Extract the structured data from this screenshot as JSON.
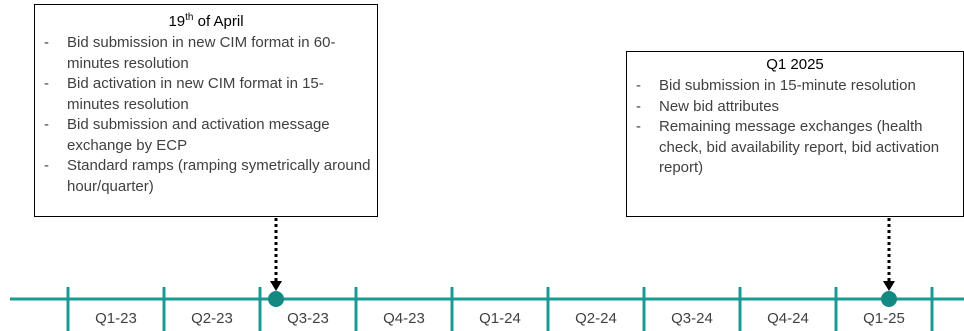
{
  "milestones": [
    {
      "title_main": "19",
      "title_sup": "th",
      "title_rest": " of April",
      "items": [
        "Bid submission in new CIM format in 60-minutes resolution",
        "Bid activation in new CIM format in 15-minutes resolution",
        "Bid submission and activation message exchange by ECP",
        "Standard ramps (ramping symetrically around hour/quarter)"
      ]
    },
    {
      "title": "Q1 2025",
      "items": [
        "Bid submission in 15-minute resolution",
        "New bid attributes",
        "Remaining message exchanges (health check, bid availability report, bid activation report)"
      ]
    }
  ],
  "quarters": [
    "Q1-23",
    "Q2-23",
    "Q3-23",
    "Q4-23",
    "Q1-24",
    "Q2-24",
    "Q3-24",
    "Q4-24",
    "Q1-25"
  ],
  "colors": {
    "timeline": "#1b9a94",
    "marker": "#128a82",
    "connector": "#000000",
    "text": "#404040"
  }
}
